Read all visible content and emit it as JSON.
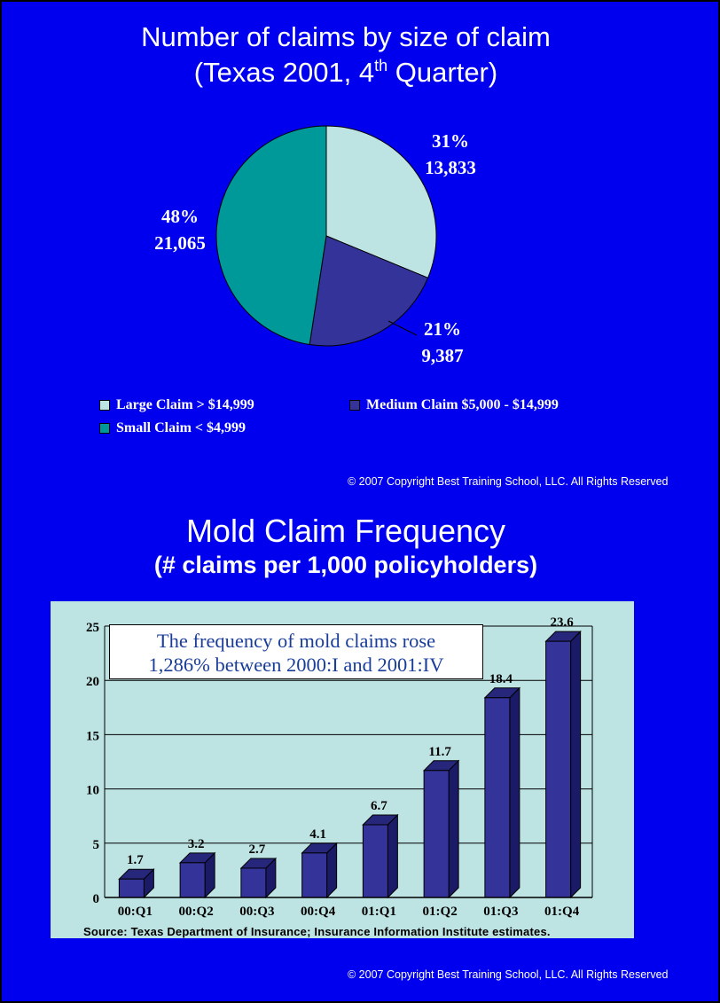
{
  "copyright": "© 2007 Copyright Best Training School, LLC. All Rights Reserved",
  "chart_data": [
    {
      "type": "pie",
      "title_line1": "Number of claims by size of claim",
      "title_line2_pre": "(Texas 2001, 4",
      "title_line2_sup": "th",
      "title_line2_post": " Quarter)",
      "slices": [
        {
          "name": "Large Claim > $14,999",
          "percent": "31%",
          "count": "13,833",
          "value": 13833,
          "color": "#bde3e3"
        },
        {
          "name": "Medium Claim $5,000 - $14,999",
          "percent": "21%",
          "count": "9,387",
          "value": 9387,
          "color": "#333399"
        },
        {
          "name": "Small Claim < $4,999",
          "percent": "48%",
          "count": "21,065",
          "value": 21065,
          "color": "#009999"
        }
      ],
      "legend_placement": "bottom"
    },
    {
      "type": "bar",
      "title": "Mold Claim Frequency",
      "subtitle": "(# claims per 1,000 policyholders)",
      "categories": [
        "00:Q1",
        "00:Q2",
        "00:Q3",
        "00:Q4",
        "01:Q1",
        "01:Q2",
        "01:Q3",
        "01:Q4"
      ],
      "values": [
        1.7,
        3.2,
        2.7,
        4.1,
        6.7,
        11.7,
        18.4,
        23.6
      ],
      "value_labels": [
        "1.7",
        "3.2",
        "2.7",
        "4.1",
        "6.7",
        "11.7",
        "18.4",
        "23.6"
      ],
      "ylim": [
        0,
        25
      ],
      "yticks": [
        "0",
        "5",
        "10",
        "15",
        "20",
        "25"
      ],
      "grid": true,
      "bar_color": "#333399",
      "annotation_line1": "The frequency of mold claims rose",
      "annotation_line2": "1,286% between  2000:I and 2001:IV",
      "source": "Source: Texas Department of Insurance; Insurance Information Institute estimates."
    }
  ]
}
